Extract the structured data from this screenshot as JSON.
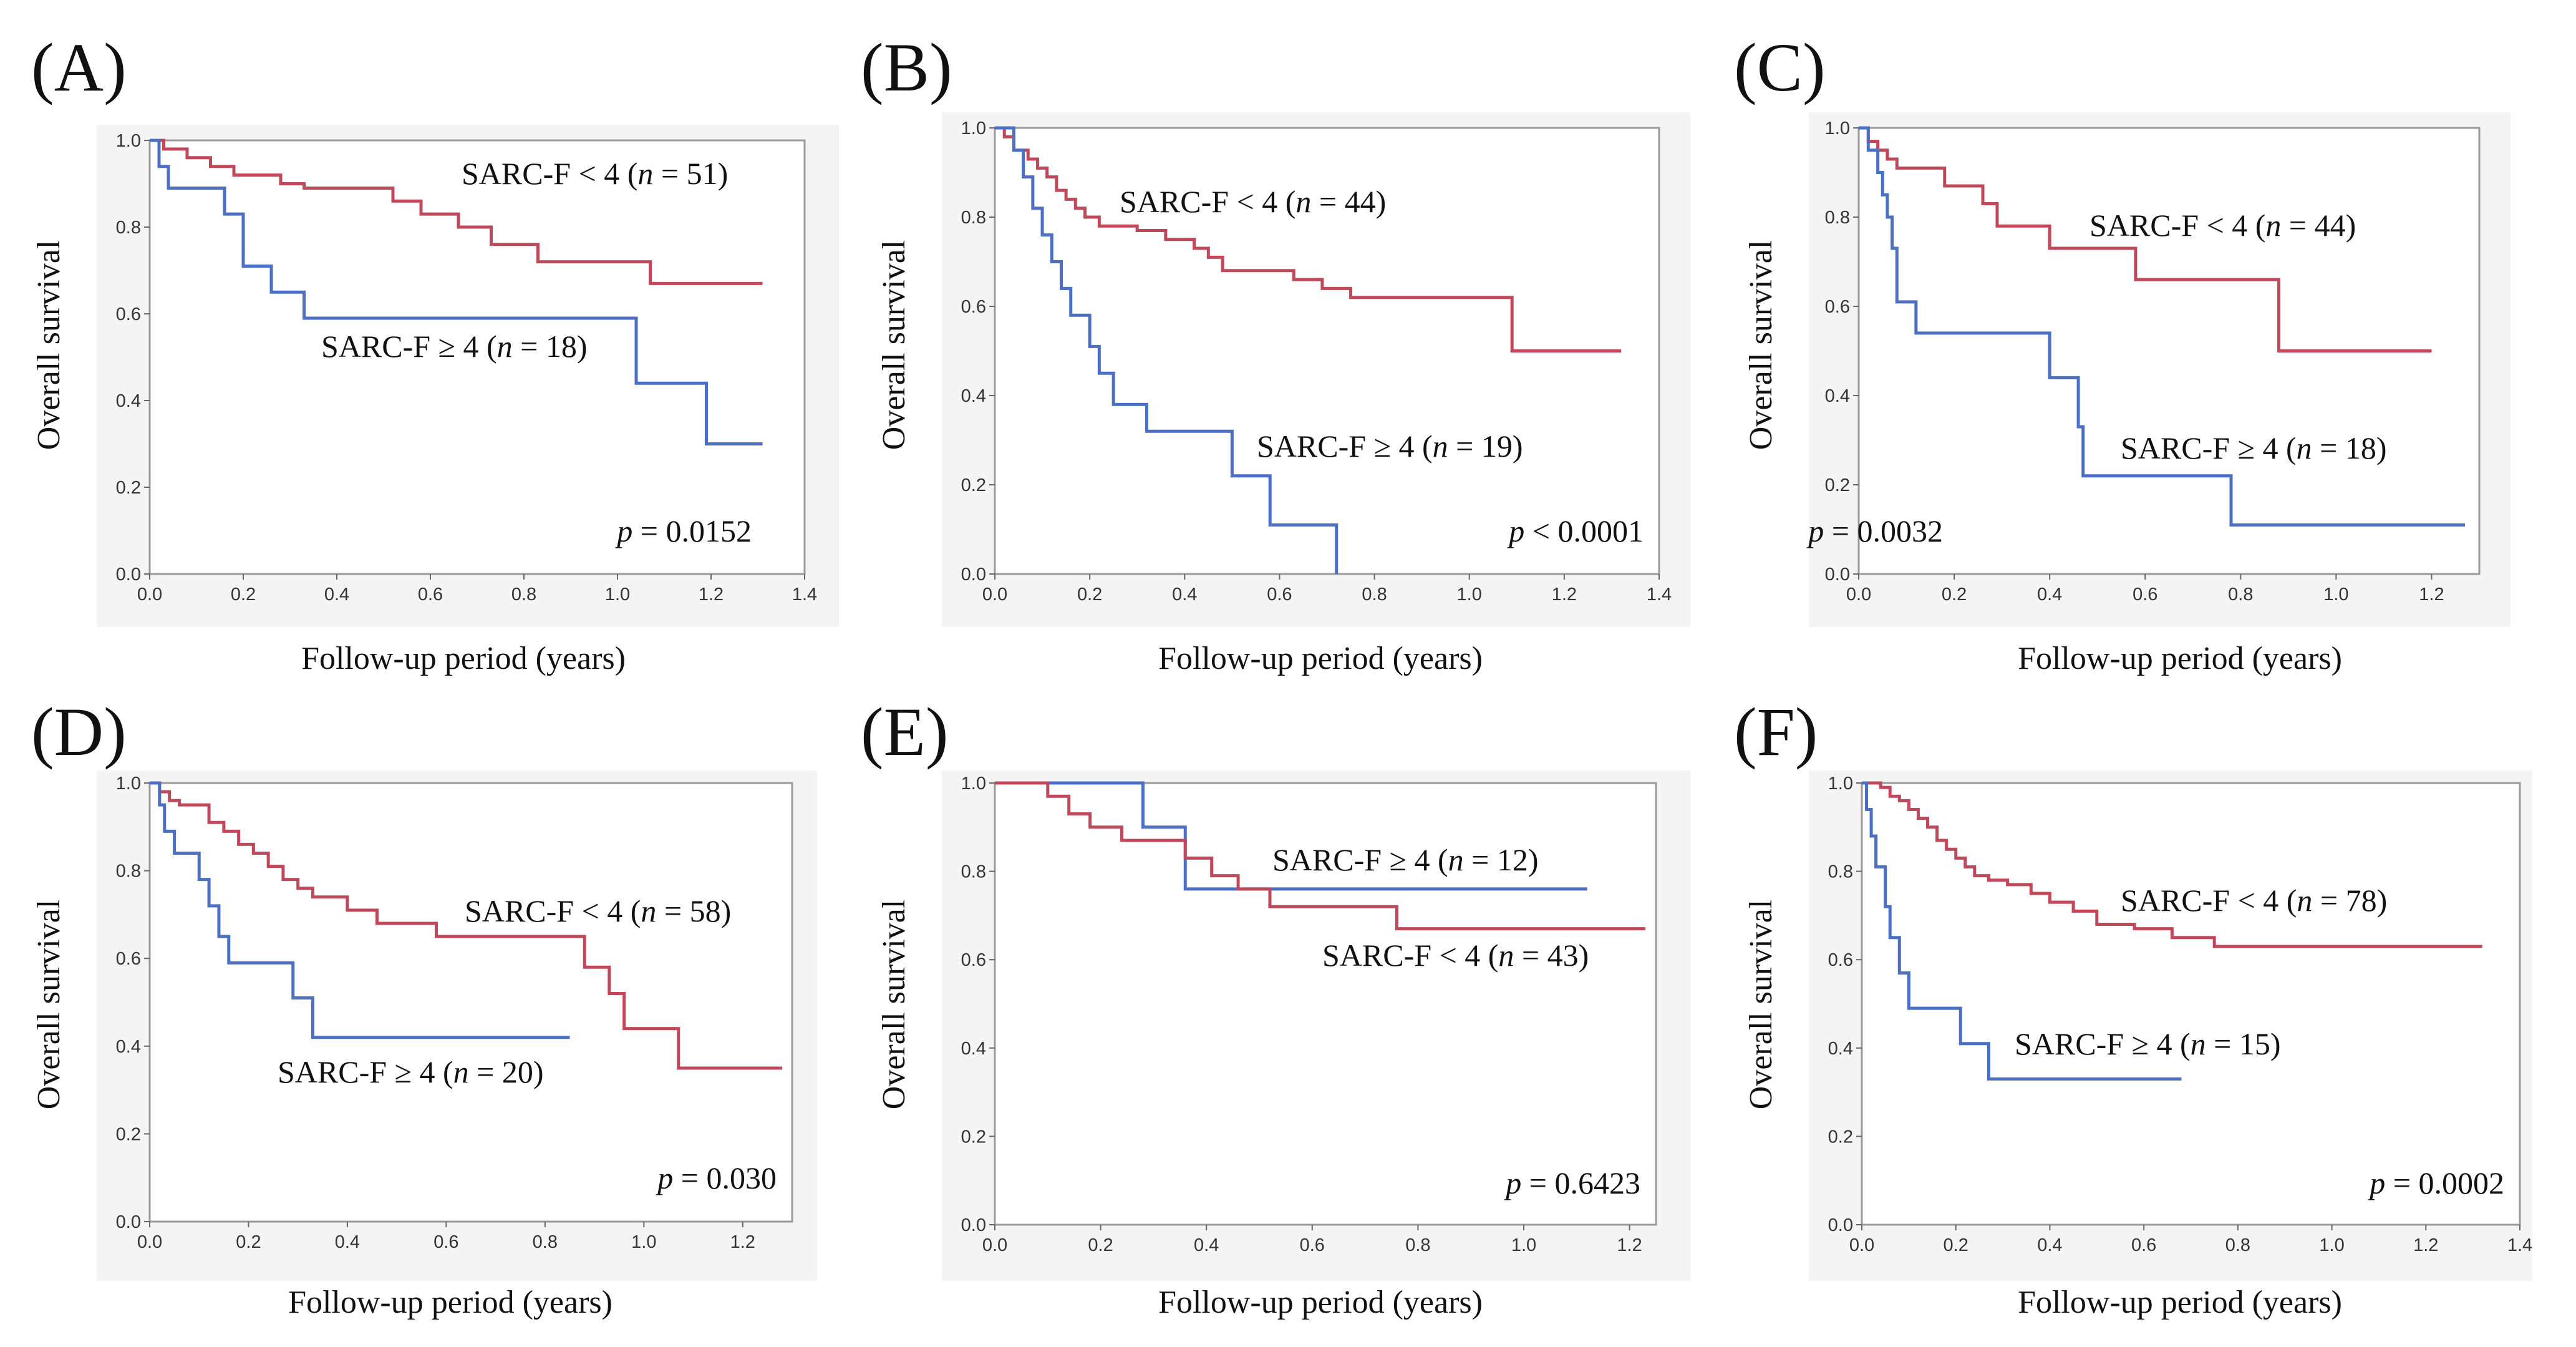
{
  "colors": {
    "red": "#c0485a",
    "blue": "#4a6fc4",
    "frame": "#9a9a9a",
    "bg": "#f4f4f4"
  },
  "chart_data": [
    {
      "type": "line",
      "step": true,
      "panel_label": "(A)",
      "xlabel": "Follow-up period (years)",
      "ylabel": "Overall survival",
      "xlim": [
        0,
        1.4
      ],
      "ylim": [
        0,
        1.0
      ],
      "xticks": [
        "0.0",
        "0.2",
        "0.4",
        "0.6",
        "0.8",
        "1.0",
        "1.2",
        "1.4"
      ],
      "yticks": [
        "0.0",
        "0.2",
        "0.4",
        "0.6",
        "0.8",
        "1.0"
      ],
      "p_prefix": "p",
      "p_value": "= 0.0152",
      "series": [
        {
          "name": "SARC-F < 4",
          "label_pre": "SARC-F < 4 (",
          "label_n": "n",
          "label_post": " = 51)",
          "color": "red",
          "x": [
            0,
            0.03,
            0.08,
            0.13,
            0.18,
            0.28,
            0.33,
            0.52,
            0.58,
            0.66,
            0.73,
            0.83,
            1.07,
            1.31
          ],
          "y": [
            1.0,
            0.98,
            0.96,
            0.94,
            0.92,
            0.9,
            0.89,
            0.86,
            0.83,
            0.8,
            0.76,
            0.72,
            0.67,
            0.67
          ]
        },
        {
          "name": "SARC-F ≥ 4",
          "label_pre": "SARC-F ≥ 4 (",
          "label_n": "n",
          "label_post": " = 18)",
          "color": "blue",
          "x": [
            0,
            0.02,
            0.04,
            0.16,
            0.2,
            0.26,
            0.33,
            1.04,
            1.19,
            1.31
          ],
          "y": [
            1.0,
            0.94,
            0.89,
            0.83,
            0.71,
            0.65,
            0.59,
            0.44,
            0.3,
            0.3
          ]
        }
      ]
    },
    {
      "type": "line",
      "step": true,
      "panel_label": "(B)",
      "xlabel": "Follow-up period (years)",
      "ylabel": "Overall survival",
      "xlim": [
        0,
        1.4
      ],
      "ylim": [
        0,
        1.0
      ],
      "xticks": [
        "0.0",
        "0.2",
        "0.4",
        "0.6",
        "0.8",
        "1.0",
        "1.2",
        "1.4"
      ],
      "yticks": [
        "0.0",
        "0.2",
        "0.4",
        "0.6",
        "0.8",
        "1.0"
      ],
      "p_prefix": "p",
      "p_value": "< 0.0001",
      "series": [
        {
          "name": "SARC-F < 4",
          "label_pre": "SARC-F < 4 (",
          "label_n": "n",
          "label_post": " = 44)",
          "color": "red",
          "x": [
            0,
            0.02,
            0.04,
            0.07,
            0.09,
            0.11,
            0.13,
            0.15,
            0.17,
            0.19,
            0.22,
            0.3,
            0.36,
            0.42,
            0.45,
            0.48,
            0.57,
            0.63,
            0.69,
            0.75,
            1.09,
            1.32
          ],
          "y": [
            1.0,
            0.98,
            0.95,
            0.93,
            0.91,
            0.89,
            0.86,
            0.84,
            0.82,
            0.8,
            0.78,
            0.77,
            0.75,
            0.73,
            0.71,
            0.68,
            0.68,
            0.66,
            0.64,
            0.62,
            0.5,
            0.5
          ]
        },
        {
          "name": "SARC-F ≥ 4",
          "label_pre": "SARC-F ≥ 4 (",
          "label_n": "n",
          "label_post": " = 19)",
          "color": "blue",
          "x": [
            0,
            0.04,
            0.06,
            0.08,
            0.1,
            0.12,
            0.14,
            0.16,
            0.2,
            0.22,
            0.25,
            0.32,
            0.5,
            0.58,
            0.72
          ],
          "y": [
            1.0,
            0.95,
            0.89,
            0.82,
            0.76,
            0.7,
            0.64,
            0.58,
            0.51,
            0.45,
            0.38,
            0.32,
            0.22,
            0.11,
            0.0
          ]
        }
      ]
    },
    {
      "type": "line",
      "step": true,
      "panel_label": "(C)",
      "xlabel": "Follow-up period (years)",
      "ylabel": "Overall survival",
      "xlim": [
        0,
        1.3
      ],
      "ylim": [
        0,
        1.0
      ],
      "xticks": [
        "0.0",
        "0.2",
        "0.4",
        "0.6",
        "0.8",
        "1.0",
        "1.2"
      ],
      "yticks": [
        "0.0",
        "0.2",
        "0.4",
        "0.6",
        "0.8",
        "1.0"
      ],
      "p_prefix": "p",
      "p_value": "= 0.0032",
      "series": [
        {
          "name": "SARC-F < 4",
          "label_pre": "SARC-F < 4 (",
          "label_n": "n",
          "label_post": " = 44)",
          "color": "red",
          "x": [
            0,
            0.02,
            0.04,
            0.06,
            0.08,
            0.18,
            0.26,
            0.29,
            0.4,
            0.58,
            0.88,
            1.2
          ],
          "y": [
            1.0,
            0.97,
            0.95,
            0.93,
            0.91,
            0.87,
            0.83,
            0.78,
            0.73,
            0.66,
            0.5,
            0.5
          ]
        },
        {
          "name": "SARC-F ≥ 4",
          "label_pre": "SARC-F ≥ 4 (",
          "label_n": "n",
          "label_post": " = 18)",
          "color": "blue",
          "x": [
            0,
            0.02,
            0.04,
            0.05,
            0.06,
            0.07,
            0.08,
            0.12,
            0.4,
            0.46,
            0.47,
            0.78,
            1.27
          ],
          "y": [
            1.0,
            0.95,
            0.9,
            0.85,
            0.8,
            0.73,
            0.61,
            0.54,
            0.44,
            0.33,
            0.22,
            0.11,
            0.11
          ]
        }
      ]
    },
    {
      "type": "line",
      "step": true,
      "panel_label": "(D)",
      "xlabel": "Follow-up period (years)",
      "ylabel": "Overall survival",
      "xlim": [
        0,
        1.3
      ],
      "ylim": [
        0,
        1.0
      ],
      "xticks": [
        "0.0",
        "0.2",
        "0.4",
        "0.6",
        "0.8",
        "1.0",
        "1.2"
      ],
      "yticks": [
        "0.0",
        "0.2",
        "0.4",
        "0.6",
        "0.8",
        "1.0"
      ],
      "p_prefix": "p",
      "p_value": "= 0.030",
      "series": [
        {
          "name": "SARC-F < 4",
          "label_pre": "SARC-F < 4 (",
          "label_n": "n",
          "label_post": " = 58)",
          "color": "red",
          "x": [
            0,
            0.02,
            0.04,
            0.06,
            0.12,
            0.15,
            0.18,
            0.21,
            0.24,
            0.27,
            0.3,
            0.33,
            0.4,
            0.46,
            0.58,
            0.88,
            0.93,
            0.96,
            1.07,
            1.28
          ],
          "y": [
            1.0,
            0.98,
            0.96,
            0.95,
            0.91,
            0.89,
            0.86,
            0.84,
            0.81,
            0.78,
            0.76,
            0.74,
            0.71,
            0.68,
            0.65,
            0.58,
            0.52,
            0.44,
            0.35,
            0.35
          ]
        },
        {
          "name": "SARC-F ≥ 4",
          "label_pre": "SARC-F ≥ 4 (",
          "label_n": "n",
          "label_post": " = 20)",
          "color": "blue",
          "x": [
            0,
            0.02,
            0.03,
            0.05,
            0.1,
            0.12,
            0.14,
            0.16,
            0.29,
            0.33,
            0.85
          ],
          "y": [
            1.0,
            0.95,
            0.89,
            0.84,
            0.78,
            0.72,
            0.65,
            0.59,
            0.51,
            0.42,
            0.42
          ]
        }
      ]
    },
    {
      "type": "line",
      "step": true,
      "panel_label": "(E)",
      "xlabel": "Follow-up period (years)",
      "ylabel": "Overall survival",
      "xlim": [
        0,
        1.25
      ],
      "ylim": [
        0,
        1.0
      ],
      "xticks": [
        "0.0",
        "0.2",
        "0.4",
        "0.6",
        "0.8",
        "1.0",
        "1.2"
      ],
      "yticks": [
        "0.0",
        "0.2",
        "0.4",
        "0.6",
        "0.8",
        "1.0"
      ],
      "p_prefix": "p",
      "p_value": "= 0.6423",
      "series": [
        {
          "name": "SARC-F ≥ 4",
          "label_pre": "SARC-F ≥ 4 (",
          "label_n": "n",
          "label_post": " = 12)",
          "color": "blue",
          "x": [
            0,
            0.28,
            0.36,
            1.12
          ],
          "y": [
            1.0,
            0.9,
            0.76,
            0.76
          ]
        },
        {
          "name": "SARC-F < 4",
          "label_pre": "SARC-F < 4 (",
          "label_n": "n",
          "label_post": " = 43)",
          "color": "red",
          "x": [
            0,
            0.1,
            0.14,
            0.18,
            0.24,
            0.36,
            0.41,
            0.46,
            0.52,
            0.76,
            1.23
          ],
          "y": [
            1.0,
            0.97,
            0.93,
            0.9,
            0.87,
            0.83,
            0.79,
            0.76,
            0.72,
            0.67,
            0.67
          ]
        }
      ]
    },
    {
      "type": "line",
      "step": true,
      "panel_label": "(F)",
      "xlabel": "Follow-up period (years)",
      "ylabel": "Overall survival",
      "xlim": [
        0,
        1.4
      ],
      "ylim": [
        0,
        1.0
      ],
      "xticks": [
        "0.0",
        "0.2",
        "0.4",
        "0.6",
        "0.8",
        "1.0",
        "1.2",
        "1.4"
      ],
      "yticks": [
        "0.0",
        "0.2",
        "0.4",
        "0.6",
        "0.8",
        "1.0"
      ],
      "p_prefix": "p",
      "p_value": "= 0.0002",
      "series": [
        {
          "name": "SARC-F < 4",
          "label_pre": "SARC-F < 4 (",
          "label_n": "n",
          "label_post": " = 78)",
          "color": "red",
          "x": [
            0,
            0.04,
            0.06,
            0.08,
            0.1,
            0.12,
            0.14,
            0.16,
            0.18,
            0.2,
            0.22,
            0.24,
            0.27,
            0.31,
            0.36,
            0.4,
            0.45,
            0.5,
            0.58,
            0.66,
            0.75,
            1.32
          ],
          "y": [
            1.0,
            0.99,
            0.97,
            0.96,
            0.94,
            0.92,
            0.9,
            0.87,
            0.85,
            0.83,
            0.81,
            0.79,
            0.78,
            0.77,
            0.75,
            0.73,
            0.71,
            0.68,
            0.67,
            0.65,
            0.63,
            0.63
          ]
        },
        {
          "name": "SARC-F ≥ 4",
          "label_pre": "SARC-F ≥ 4 (",
          "label_n": "n",
          "label_post": " = 15)",
          "color": "blue",
          "x": [
            0,
            0.01,
            0.02,
            0.03,
            0.05,
            0.06,
            0.08,
            0.1,
            0.21,
            0.27,
            0.68
          ],
          "y": [
            1.0,
            0.94,
            0.88,
            0.81,
            0.72,
            0.65,
            0.57,
            0.49,
            0.41,
            0.33,
            0.33
          ]
        }
      ]
    }
  ]
}
